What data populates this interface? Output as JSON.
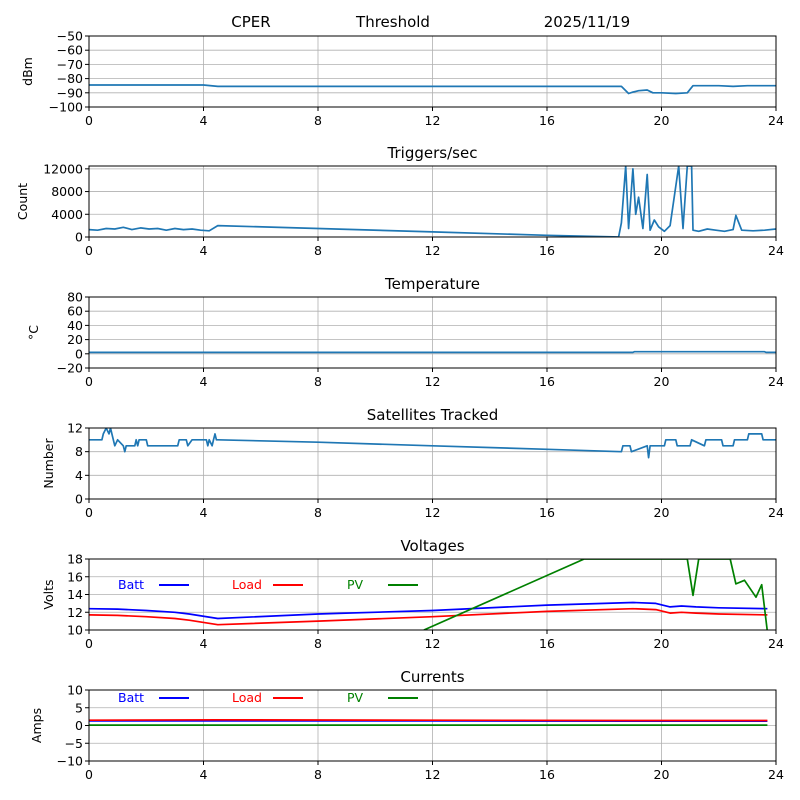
{
  "header": {
    "station": "CPER",
    "mode": "Threshold",
    "date": "2025/11/19"
  },
  "chart_data": [
    {
      "type": "line",
      "title": "",
      "ylabel": "dBm",
      "xlabel": "",
      "xlim": [
        0,
        24
      ],
      "ylim": [
        -100,
        -50
      ],
      "xticks": [
        0,
        4,
        8,
        12,
        16,
        20,
        24
      ],
      "yticks": [
        -100,
        -90,
        -80,
        -70,
        -60,
        -50
      ],
      "grid": true,
      "series": [
        {
          "name": "Threshold",
          "color": "#1f77b4",
          "x": [
            0,
            0.5,
            1,
            2,
            3,
            4,
            4.5,
            8,
            12,
            16,
            18.6,
            18.85,
            19.0,
            19.2,
            19.5,
            19.7,
            20,
            20.5,
            20.9,
            21.1,
            21.5,
            22,
            22.5,
            23,
            23.5,
            24
          ],
          "y": [
            -84.5,
            -84.5,
            -84.5,
            -84.5,
            -84.5,
            -84.5,
            -85.5,
            -85.5,
            -85.5,
            -85.5,
            -85.5,
            -90.5,
            -89.5,
            -88.5,
            -88,
            -90,
            -90,
            -90.5,
            -90,
            -85,
            -85,
            -85,
            -85.5,
            -85,
            -85,
            -85
          ]
        }
      ]
    },
    {
      "type": "line",
      "title": "Triggers/sec",
      "ylabel": "Count",
      "xlabel": "",
      "xlim": [
        0,
        24
      ],
      "ylim": [
        0,
        12500
      ],
      "xticks": [
        0,
        4,
        8,
        12,
        16,
        20,
        24
      ],
      "yticks": [
        0,
        4000,
        8000,
        12000
      ],
      "grid": true,
      "series": [
        {
          "name": "Triggers",
          "color": "#1f77b4",
          "x": [
            0,
            0.3,
            0.6,
            0.9,
            1.2,
            1.5,
            1.8,
            2.1,
            2.4,
            2.7,
            3.0,
            3.3,
            3.6,
            3.9,
            4.2,
            4.5,
            8,
            12,
            16,
            18.5,
            18.6,
            18.75,
            18.85,
            19.0,
            19.1,
            19.2,
            19.35,
            19.5,
            19.6,
            19.75,
            19.9,
            20.1,
            20.3,
            20.6,
            20.75,
            20.9,
            21.05,
            21.1,
            21.3,
            21.6,
            21.9,
            22.2,
            22.5,
            22.6,
            22.8,
            23.2,
            23.6,
            24
          ],
          "y": [
            1300,
            1200,
            1500,
            1400,
            1700,
            1300,
            1600,
            1400,
            1500,
            1200,
            1500,
            1300,
            1400,
            1200,
            1100,
            2000,
            1500,
            900,
            300,
            0,
            2500,
            12500,
            1500,
            12000,
            4000,
            7000,
            1500,
            11000,
            1200,
            3000,
            1800,
            1000,
            2000,
            12500,
            1500,
            12500,
            12500,
            1200,
            1000,
            1400,
            1200,
            1000,
            1300,
            3800,
            1200,
            1100,
            1200,
            1400
          ]
        }
      ]
    },
    {
      "type": "line",
      "title": "Temperature",
      "ylabel": "°C",
      "xlabel": "",
      "xlim": [
        0,
        24
      ],
      "ylim": [
        -20,
        80
      ],
      "xticks": [
        0,
        4,
        8,
        12,
        16,
        20,
        24
      ],
      "yticks": [
        -20,
        0,
        20,
        40,
        60,
        80
      ],
      "grid": true,
      "series": [
        {
          "name": "Temperature",
          "color": "#1f77b4",
          "x": [
            0,
            4,
            8,
            12,
            16,
            19.0,
            19.05,
            20,
            23.6,
            23.65,
            24
          ],
          "y": [
            2,
            2,
            2,
            2,
            2,
            2,
            3,
            3,
            3,
            2,
            2
          ]
        }
      ]
    },
    {
      "type": "line",
      "title": "Satellites Tracked",
      "ylabel": "Number",
      "xlabel": "",
      "xlim": [
        0,
        24
      ],
      "ylim": [
        0,
        12
      ],
      "xticks": [
        0,
        4,
        8,
        12,
        16,
        20,
        24
      ],
      "yticks": [
        0,
        4,
        8,
        12
      ],
      "grid": true,
      "series": [
        {
          "name": "Satellites",
          "color": "#1f77b4",
          "x": [
            0,
            0.45,
            0.5,
            0.6,
            0.7,
            0.75,
            0.8,
            0.9,
            1.0,
            1.2,
            1.25,
            1.3,
            1.6,
            1.65,
            1.7,
            1.75,
            2.0,
            2.05,
            2.1,
            3.1,
            3.15,
            3.4,
            3.45,
            3.6,
            4.1,
            4.15,
            4.2,
            4.3,
            4.35,
            4.4,
            4.45,
            4.5,
            8,
            12,
            16,
            18.6,
            18.65,
            18.9,
            18.95,
            19.5,
            19.55,
            19.6,
            20.1,
            20.15,
            20.5,
            20.55,
            21.0,
            21.05,
            21.5,
            21.55,
            22.1,
            22.15,
            22.5,
            22.55,
            23.0,
            23.05,
            23.5,
            23.55,
            24
          ],
          "y": [
            10,
            10,
            11,
            12,
            11,
            12,
            11,
            9,
            10,
            9,
            8,
            9,
            9,
            10,
            9,
            10,
            10,
            9,
            9,
            9,
            10,
            10,
            9,
            10,
            10,
            9,
            10,
            9,
            10,
            11,
            10,
            10,
            9.6,
            9,
            8.4,
            8,
            9,
            9,
            8,
            9,
            7,
            9,
            9,
            10,
            10,
            9,
            9,
            10,
            9,
            10,
            10,
            9,
            9,
            10,
            10,
            11,
            11,
            10,
            10
          ]
        }
      ]
    },
    {
      "type": "line",
      "title": "Voltages",
      "ylabel": "Volts",
      "xlabel": "",
      "xlim": [
        0,
        24
      ],
      "ylim": [
        10,
        18
      ],
      "xticks": [
        0,
        4,
        8,
        12,
        16,
        20,
        24
      ],
      "yticks": [
        10,
        12,
        14,
        16,
        18
      ],
      "grid": true,
      "legend": {
        "placement": "top-left",
        "entries": [
          {
            "label": "Batt",
            "color": "#0000ff"
          },
          {
            "label": "Load",
            "color": "#ff0000"
          },
          {
            "label": "PV",
            "color": "#008000"
          }
        ]
      },
      "series": [
        {
          "name": "Batt",
          "color": "#0000ff",
          "x": [
            0,
            1,
            2,
            3,
            3.5,
            4.5,
            8,
            12,
            16,
            19,
            19.8,
            20.3,
            20.7,
            21.2,
            22,
            23.7
          ],
          "y": [
            12.4,
            12.35,
            12.2,
            12.0,
            11.8,
            11.3,
            11.8,
            12.2,
            12.8,
            13.1,
            13.0,
            12.6,
            12.7,
            12.6,
            12.5,
            12.4
          ]
        },
        {
          "name": "Load",
          "color": "#ff0000",
          "x": [
            0,
            1,
            2,
            3,
            3.5,
            4.5,
            8,
            12,
            16,
            19,
            19.8,
            20.3,
            20.7,
            21.2,
            22,
            23.7
          ],
          "y": [
            11.7,
            11.65,
            11.5,
            11.3,
            11.1,
            10.6,
            11.0,
            11.5,
            12.1,
            12.4,
            12.3,
            11.9,
            12.0,
            11.9,
            11.8,
            11.7
          ]
        },
        {
          "name": "PV",
          "color": "#008000",
          "x": [
            11.7,
            17.3,
            20.9,
            21.1,
            21.3,
            22.4,
            22.6,
            22.9,
            23.3,
            23.5,
            23.7
          ],
          "y": [
            10.0,
            18.0,
            18.0,
            13.9,
            18.0,
            18.0,
            15.2,
            15.6,
            13.7,
            15.1,
            9.8
          ]
        }
      ]
    },
    {
      "type": "line",
      "title": "Currents",
      "ylabel": "Amps",
      "xlabel": "",
      "xlim": [
        0,
        24
      ],
      "ylim": [
        -10,
        10
      ],
      "xticks": [
        0,
        4,
        8,
        12,
        16,
        20,
        24
      ],
      "yticks": [
        -10,
        -5,
        0,
        5,
        10
      ],
      "grid": true,
      "legend": {
        "placement": "top-left",
        "entries": [
          {
            "label": "Batt",
            "color": "#0000ff"
          },
          {
            "label": "Load",
            "color": "#ff0000"
          },
          {
            "label": "PV",
            "color": "#008000"
          }
        ]
      },
      "series": [
        {
          "name": "Batt",
          "color": "#0000ff",
          "x": [
            0,
            4.5,
            12,
            19,
            23.7
          ],
          "y": [
            1.3,
            1.3,
            1.3,
            1.2,
            1.2
          ]
        },
        {
          "name": "Load",
          "color": "#ff0000",
          "x": [
            0,
            4.5,
            12,
            19,
            23.7
          ],
          "y": [
            1.5,
            1.6,
            1.5,
            1.4,
            1.4
          ]
        },
        {
          "name": "PV",
          "color": "#008000",
          "x": [
            0,
            12,
            23.7
          ],
          "y": [
            0.1,
            0.1,
            0.1
          ]
        }
      ]
    }
  ]
}
